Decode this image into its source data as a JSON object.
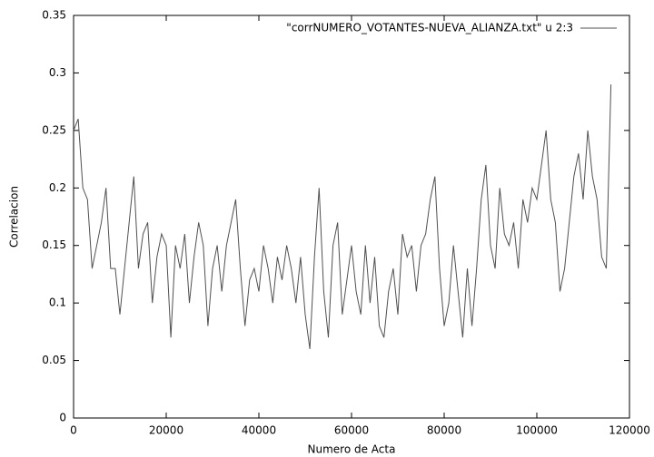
{
  "chart_data": {
    "type": "line",
    "xlabel": "Numero de Acta",
    "ylabel": "Correlacion",
    "x": [
      0,
      1000,
      2000,
      3000,
      4000,
      5000,
      6000,
      7000,
      8000,
      9000,
      10000,
      11000,
      12000,
      13000,
      14000,
      15000,
      16000,
      17000,
      18000,
      19000,
      20000,
      21000,
      22000,
      23000,
      24000,
      25000,
      26000,
      27000,
      28000,
      29000,
      30000,
      31000,
      32000,
      33000,
      34000,
      35000,
      36000,
      37000,
      38000,
      39000,
      40000,
      41000,
      42000,
      43000,
      44000,
      45000,
      46000,
      47000,
      48000,
      49000,
      50000,
      51000,
      52000,
      53000,
      54000,
      55000,
      56000,
      57000,
      58000,
      59000,
      60000,
      61000,
      62000,
      63000,
      64000,
      65000,
      66000,
      67000,
      68000,
      69000,
      70000,
      71000,
      72000,
      73000,
      74000,
      75000,
      76000,
      77000,
      78000,
      79000,
      80000,
      81000,
      82000,
      83000,
      84000,
      85000,
      86000,
      87000,
      88000,
      89000,
      90000,
      91000,
      92000,
      93000,
      94000,
      95000,
      96000,
      97000,
      98000,
      99000,
      100000,
      101000,
      102000,
      103000,
      104000,
      105000,
      106000,
      107000,
      108000,
      109000,
      110000,
      111000,
      112000,
      113000,
      114000,
      115000,
      116000
    ],
    "series": [
      {
        "name": "\"corrNUMERO_VOTANTES-NUEVA_ALIANZA.txt\" u 2:3",
        "color": "#505050",
        "values": [
          0.25,
          0.26,
          0.2,
          0.19,
          0.13,
          0.15,
          0.17,
          0.2,
          0.13,
          0.13,
          0.09,
          0.13,
          0.17,
          0.21,
          0.13,
          0.16,
          0.17,
          0.1,
          0.14,
          0.16,
          0.15,
          0.07,
          0.15,
          0.13,
          0.16,
          0.1,
          0.14,
          0.17,
          0.15,
          0.08,
          0.13,
          0.15,
          0.11,
          0.15,
          0.17,
          0.19,
          0.13,
          0.08,
          0.12,
          0.13,
          0.11,
          0.15,
          0.13,
          0.1,
          0.14,
          0.12,
          0.15,
          0.13,
          0.1,
          0.14,
          0.09,
          0.06,
          0.14,
          0.2,
          0.11,
          0.07,
          0.15,
          0.17,
          0.09,
          0.12,
          0.15,
          0.11,
          0.09,
          0.15,
          0.1,
          0.14,
          0.08,
          0.07,
          0.11,
          0.13,
          0.09,
          0.16,
          0.14,
          0.15,
          0.11,
          0.15,
          0.16,
          0.19,
          0.21,
          0.13,
          0.08,
          0.1,
          0.15,
          0.11,
          0.07,
          0.13,
          0.08,
          0.13,
          0.19,
          0.22,
          0.15,
          0.13,
          0.2,
          0.16,
          0.15,
          0.17,
          0.13,
          0.19,
          0.17,
          0.2,
          0.19,
          0.22,
          0.25,
          0.19,
          0.17,
          0.11,
          0.13,
          0.17,
          0.21,
          0.23,
          0.19,
          0.25,
          0.21,
          0.19,
          0.14,
          0.13,
          0.29
        ]
      }
    ],
    "xlim": [
      0,
      120000
    ],
    "xticks": [
      0,
      20000,
      40000,
      60000,
      80000,
      100000,
      120000
    ],
    "ylim": [
      0,
      0.35
    ],
    "yticks": [
      0,
      0.05,
      0.1,
      0.15,
      0.2,
      0.25,
      0.3,
      0.35
    ],
    "grid": false,
    "legend": "top-right"
  }
}
